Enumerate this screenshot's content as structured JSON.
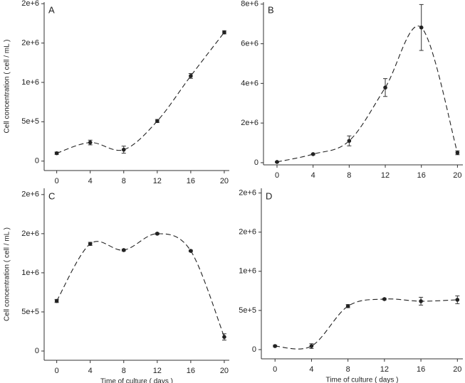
{
  "chart_data": [
    {
      "type": "scatter",
      "title": "A",
      "ylabel": "Cell concentration ( cell / mL )",
      "x": [
        0,
        4,
        8,
        12,
        16,
        20
      ],
      "values": [
        100000,
        236000,
        145000,
        509000,
        1082000,
        1636000
      ],
      "errors": [
        15000,
        30000,
        45000,
        20000,
        30000,
        20000
      ],
      "xlim": [
        -1.5,
        20.6
      ],
      "xticks": [
        0,
        4,
        8,
        12,
        16,
        20
      ],
      "ylim": [
        -120000,
        2020000
      ],
      "yticks": [
        0,
        {
          "value": 500000,
          "label": "5e+5"
        },
        {
          "value": 1000000,
          "label": "1e+6"
        },
        {
          "value": 1500000,
          "label": "2e+6"
        },
        {
          "value": 2000000,
          "label": "2e+6"
        }
      ],
      "color": "#222222"
    },
    {
      "type": "scatter",
      "title": "B",
      "x": [
        0,
        4,
        8,
        12,
        16,
        20
      ],
      "values": [
        36000,
        430000,
        1100000,
        3790000,
        6820000,
        500000
      ],
      "errors": [
        20000,
        40000,
        250000,
        450000,
        1160000,
        100000
      ],
      "xlim": [
        -1.5,
        20.6
      ],
      "xticks": [
        0,
        4,
        8,
        12,
        16,
        20
      ],
      "ylim": [
        -110000,
        8100000
      ],
      "yticks": [
        0,
        {
          "value": 2000000,
          "label": "2e+6"
        },
        {
          "value": 4000000,
          "label": "4e+6"
        },
        {
          "value": 6000000,
          "label": "6e+6"
        },
        {
          "value": 8000000,
          "label": "8e+6"
        }
      ],
      "color": "#222222"
    },
    {
      "type": "scatter",
      "title": "C",
      "ylabel": "Cell concentration ( cell / mL )",
      "xlabel": "Time of culture ( days )",
      "x": [
        0,
        4,
        8,
        12,
        16,
        20
      ],
      "values": [
        640000,
        1370000,
        1290000,
        1500000,
        1280000,
        180000
      ],
      "errors": [
        20000,
        20000,
        10000,
        10000,
        10000,
        40000
      ],
      "xlim": [
        -1.5,
        20.6
      ],
      "xticks": [
        0,
        4,
        8,
        12,
        16,
        20
      ],
      "ylim": [
        -118000,
        2080000
      ],
      "yticks": [
        0,
        {
          "value": 500000,
          "label": "5e+5"
        },
        {
          "value": 1000000,
          "label": "1e+6"
        },
        {
          "value": 1500000,
          "label": "2e+6"
        },
        {
          "value": 2000000,
          "label": "2e+6"
        }
      ],
      "color": "#222222"
    },
    {
      "type": "scatter",
      "title": "D",
      "xlabel": "Time of culture ( days )",
      "x": [
        0,
        4,
        8,
        12,
        16,
        20
      ],
      "values": [
        45000,
        45000,
        555000,
        645000,
        618000,
        636000
      ],
      "errors": [
        10000,
        30000,
        20000,
        10000,
        50000,
        50000
      ],
      "xlim": [
        -1.5,
        20.6
      ],
      "xticks": [
        0,
        4,
        8,
        12,
        16,
        20
      ],
      "ylim": [
        -118000,
        2060000
      ],
      "yticks": [
        0,
        {
          "value": 500000,
          "label": "5e+5"
        },
        {
          "value": 1000000,
          "label": "1e+6"
        },
        {
          "value": 1500000,
          "label": "2e+6"
        },
        {
          "value": 2000000,
          "label": "2e+6"
        }
      ],
      "color": "#222222"
    }
  ]
}
